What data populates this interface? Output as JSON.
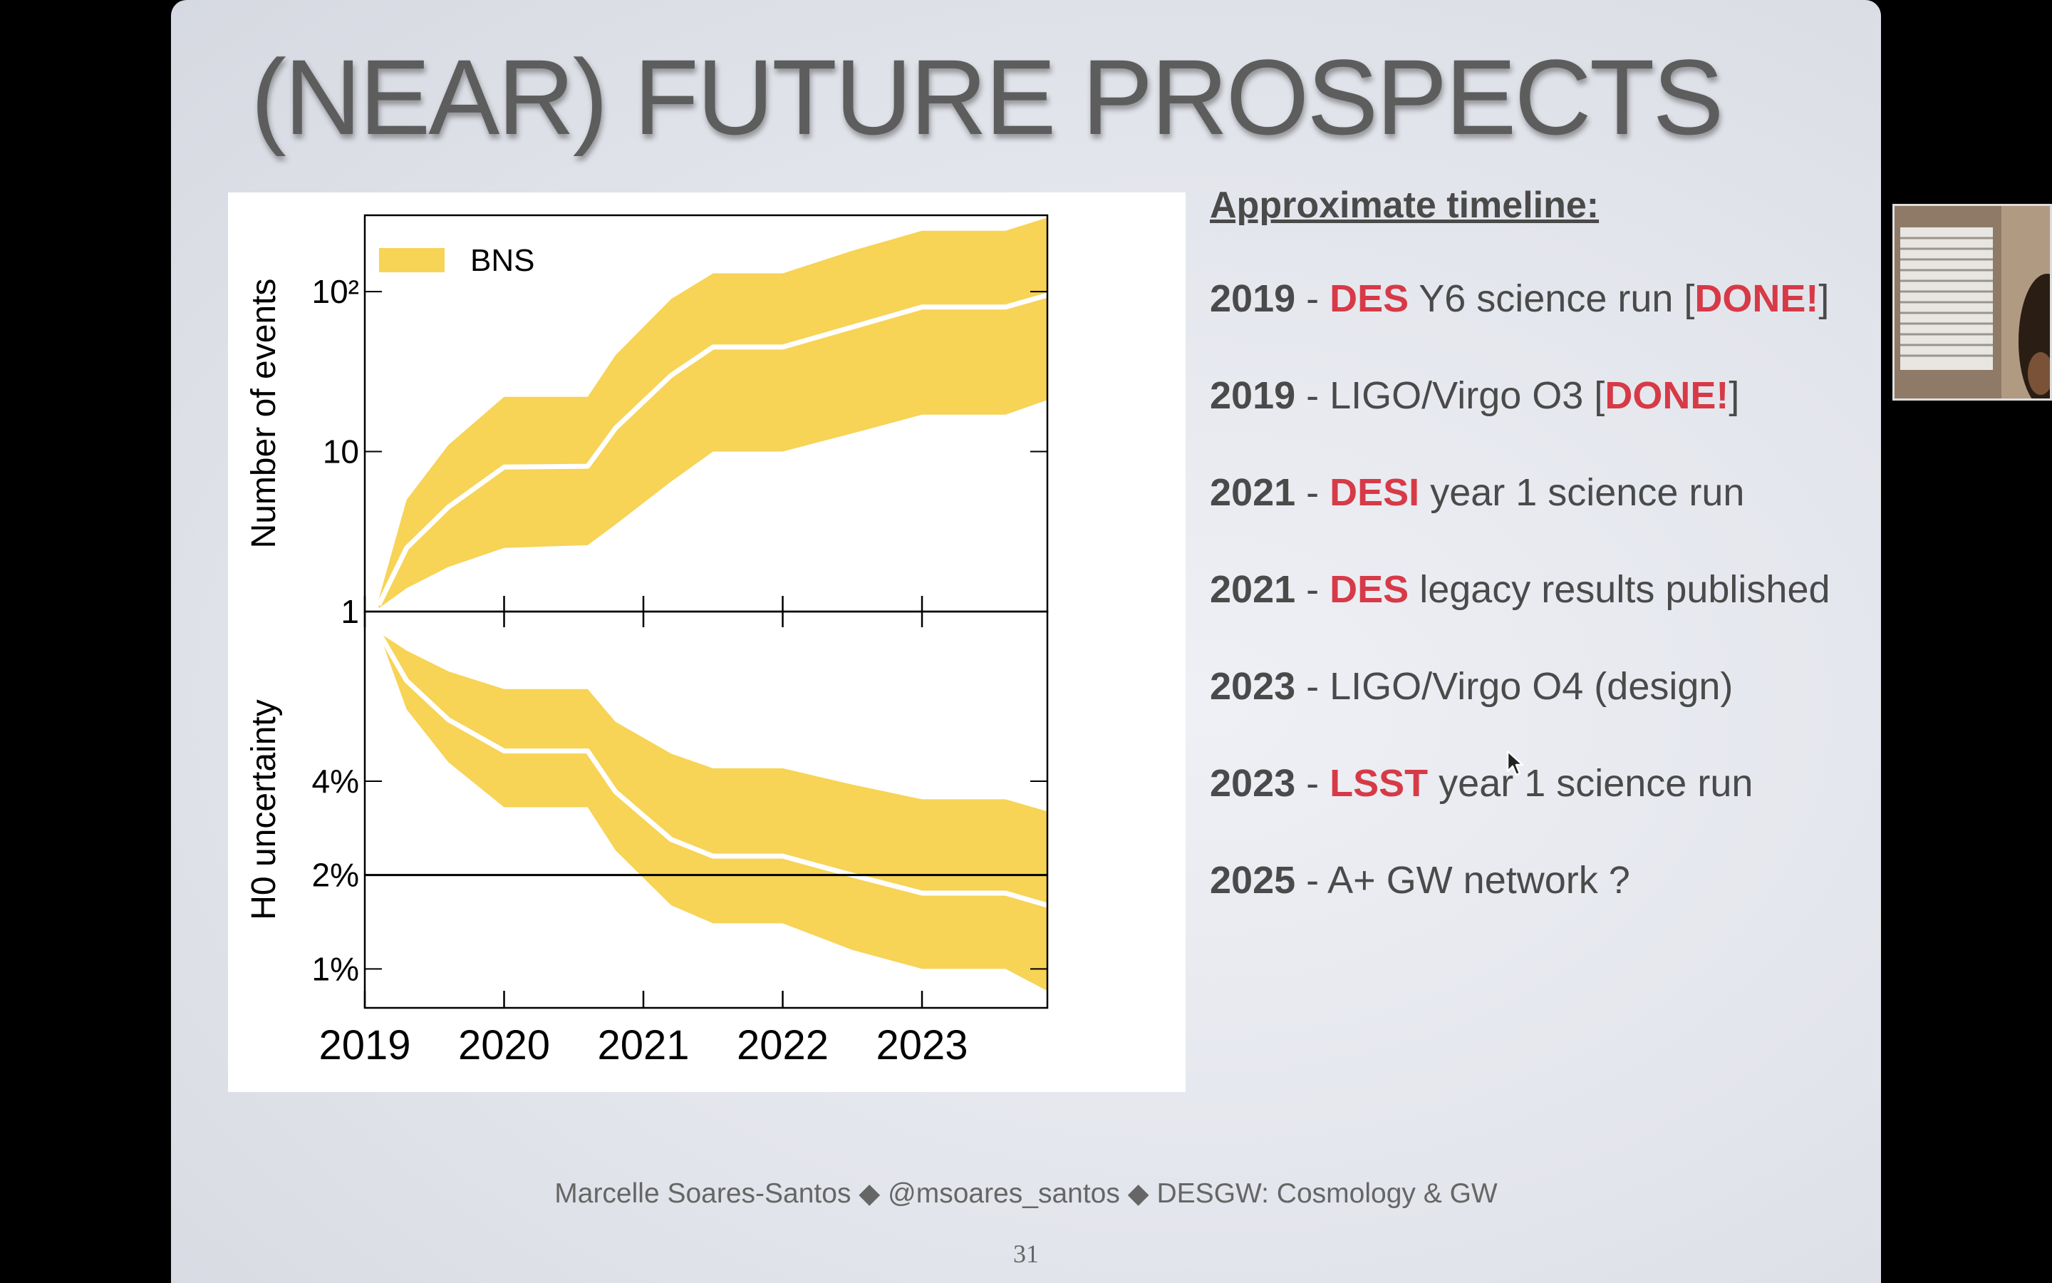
{
  "slide": {
    "title": "(NEAR) FUTURE PROSPECTS",
    "footer": "Marcelle Soares-Santos ◆ @msoares_santos ◆ DESGW: Cosmology & GW",
    "page_number": "31"
  },
  "timeline": {
    "heading": "Approximate timeline:",
    "items": [
      {
        "year": "2019",
        "sep": " - ",
        "hl": "DES",
        "text": " Y6 science run [",
        "hl2": "DONE!",
        "tail": "]"
      },
      {
        "year": "2019",
        "sep": " - ",
        "hl": "",
        "text": "LIGO/Virgo O3 [",
        "hl2": "DONE!",
        "tail": "]"
      },
      {
        "year": "2021",
        "sep": " - ",
        "hl": "DESI",
        "text": " year 1 science run",
        "hl2": "",
        "tail": ""
      },
      {
        "year": "2021",
        "sep": " - ",
        "hl": "DES",
        "text": " legacy results published",
        "hl2": "",
        "tail": ""
      },
      {
        "year": "2023",
        "sep": " - ",
        "hl": "",
        "text": "LIGO/Virgo O4 (design)",
        "hl2": "",
        "tail": ""
      },
      {
        "year": "2023",
        "sep": " - ",
        "hl": "LSST",
        "text": " year 1 science run",
        "hl2": "",
        "tail": ""
      },
      {
        "year": "2025",
        "sep": " - ",
        "hl": "",
        "text": "A+ GW network ?",
        "hl2": "",
        "tail": ""
      }
    ]
  },
  "colors": {
    "band": "#f7d356",
    "highlight": "#d73a47",
    "text": "#4a4a4a"
  },
  "chart_data": [
    {
      "type": "area",
      "legend": [
        "BNS"
      ],
      "legend_position": "top-left",
      "ylabel": "Number of events",
      "yscale": "log",
      "ylim": [
        1,
        300
      ],
      "yticks": [
        {
          "value": 1,
          "label": "1"
        },
        {
          "value": 10,
          "label": "10"
        },
        {
          "value": 100,
          "label": "10²"
        }
      ],
      "xlim": [
        2019,
        2023.9
      ],
      "series": [
        {
          "name": "BNS",
          "x": [
            2019.1,
            2019.3,
            2019.6,
            2020.0,
            2020.6,
            2020.8,
            2021.2,
            2021.5,
            2022.0,
            2022.5,
            2023.0,
            2023.6,
            2023.9
          ],
          "lower": [
            1.05,
            1.4,
            1.9,
            2.5,
            2.6,
            3.5,
            6.5,
            10,
            10,
            13,
            17,
            17,
            21
          ],
          "median": [
            1.1,
            2.5,
            4.5,
            8,
            8.1,
            14,
            30,
            45,
            45,
            60,
            80,
            80,
            95
          ],
          "upper": [
            1.2,
            5,
            11,
            22,
            22,
            40,
            90,
            130,
            130,
            180,
            240,
            240,
            290
          ]
        }
      ]
    },
    {
      "type": "area",
      "xlabel": "",
      "ylabel": "H0 uncertainty",
      "yscale": "log",
      "ylim": [
        0.75,
        14
      ],
      "yticks": [
        {
          "value": 1,
          "label": "1%"
        },
        {
          "value": 2,
          "label": "2%"
        },
        {
          "value": 4,
          "label": "4%"
        }
      ],
      "reference_line": 2,
      "xlim": [
        2019,
        2023.9
      ],
      "xticks": [
        {
          "value": 2019,
          "label": "2019"
        },
        {
          "value": 2020,
          "label": "2020"
        },
        {
          "value": 2021,
          "label": "2021"
        },
        {
          "value": 2022,
          "label": "2022"
        },
        {
          "value": 2023,
          "label": "2023"
        }
      ],
      "series": [
        {
          "name": "BNS",
          "x": [
            2019.1,
            2019.3,
            2019.6,
            2020.0,
            2020.6,
            2020.8,
            2021.2,
            2021.5,
            2022.0,
            2022.5,
            2023.0,
            2023.6,
            2023.9
          ],
          "lower": [
            12,
            6.8,
            4.6,
            3.3,
            3.3,
            2.4,
            1.6,
            1.4,
            1.4,
            1.15,
            1.0,
            1.0,
            0.85
          ],
          "median": [
            12,
            8.4,
            6.3,
            5.0,
            5.0,
            3.7,
            2.6,
            2.3,
            2.3,
            2.0,
            1.75,
            1.75,
            1.6
          ],
          "upper": [
            12,
            10.5,
            9.0,
            7.9,
            7.9,
            6.2,
            4.9,
            4.4,
            4.4,
            3.9,
            3.5,
            3.5,
            3.2
          ]
        }
      ]
    }
  ]
}
